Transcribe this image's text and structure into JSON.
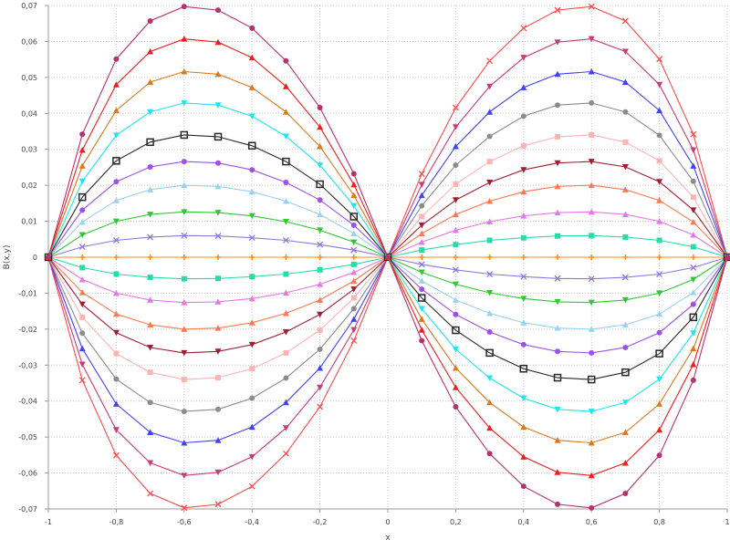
{
  "chart_data": {
    "type": "line",
    "xlabel": "x",
    "ylabel": "B(x,y)",
    "xlim": [
      -1,
      1
    ],
    "ylim": [
      -0.07,
      0.07
    ],
    "x_ticks": [
      {
        "value": -1,
        "label": "-1"
      },
      {
        "value": -0.8,
        "label": "-0,8"
      },
      {
        "value": -0.6,
        "label": "-0,6"
      },
      {
        "value": -0.4,
        "label": "-0,4"
      },
      {
        "value": -0.2,
        "label": "-0,2"
      },
      {
        "value": 0,
        "label": "0"
      },
      {
        "value": 0.2,
        "label": "0,2"
      },
      {
        "value": 0.4,
        "label": "0,4"
      },
      {
        "value": 0.6,
        "label": "0,6"
      },
      {
        "value": 0.8,
        "label": "0,8"
      },
      {
        "value": 1,
        "label": "1"
      }
    ],
    "y_ticks": [
      {
        "value": 0.07,
        "label": "0,07"
      },
      {
        "value": 0.06,
        "label": "0,06"
      },
      {
        "value": 0.05,
        "label": "0,05"
      },
      {
        "value": 0.04,
        "label": "0,04"
      },
      {
        "value": 0.03,
        "label": "0,03"
      },
      {
        "value": 0.02,
        "label": "0,02"
      },
      {
        "value": 0.01,
        "label": "0,01"
      },
      {
        "value": 0,
        "label": "0"
      },
      {
        "value": -0.01,
        "label": "-0,01"
      },
      {
        "value": -0.02,
        "label": "-0,02"
      },
      {
        "value": -0.03,
        "label": "-0,03"
      },
      {
        "value": -0.04,
        "label": "-0,04"
      },
      {
        "value": -0.05,
        "label": "-0,05"
      },
      {
        "value": -0.06,
        "label": "-0,06"
      },
      {
        "value": -0.07,
        "label": "-0,07"
      }
    ],
    "grid": true,
    "x": [
      -1,
      -0.9,
      -0.8,
      -0.7,
      -0.6,
      -0.5,
      -0.4,
      -0.3,
      -0.2,
      -0.1,
      0,
      0.1,
      0.2,
      0.3,
      0.4,
      0.5,
      0.6,
      0.7,
      0.8,
      0.9,
      1
    ],
    "series": [
      {
        "color": "#ff4a4a",
        "marker": "x",
        "values": [
          0,
          -0.0342,
          -0.0551,
          -0.0657,
          -0.0697,
          -0.0687,
          -0.0637,
          -0.0546,
          -0.0416,
          -0.0232,
          0,
          0.0232,
          0.0416,
          0.0546,
          0.0637,
          0.0687,
          0.0697,
          0.0657,
          0.0551,
          0.0342,
          0
        ]
      },
      {
        "color": "#c83c78",
        "marker": "v",
        "values": [
          0,
          -0.0298,
          -0.048,
          -0.0572,
          -0.0607,
          -0.0598,
          -0.0555,
          -0.0475,
          -0.0362,
          -0.0202,
          0,
          0.0202,
          0.0362,
          0.0475,
          0.0555,
          0.0598,
          0.0607,
          0.0572,
          0.048,
          0.0298,
          0
        ]
      },
      {
        "color": "#4040ff",
        "marker": "triangle",
        "values": [
          0,
          -0.0254,
          -0.0408,
          -0.0487,
          -0.0516,
          -0.0509,
          -0.0472,
          -0.0404,
          -0.0308,
          -0.0172,
          0,
          0.0172,
          0.0308,
          0.0404,
          0.0472,
          0.0509,
          0.0516,
          0.0487,
          0.0408,
          0.0254,
          0
        ]
      },
      {
        "color": "#8c8c8c",
        "marker": "circle",
        "values": [
          0,
          -0.0211,
          -0.0339,
          -0.0404,
          -0.0429,
          -0.0423,
          -0.0392,
          -0.0336,
          -0.0256,
          -0.0143,
          0,
          0.0143,
          0.0256,
          0.0336,
          0.0392,
          0.0423,
          0.0429,
          0.0404,
          0.0339,
          0.0211,
          0
        ]
      },
      {
        "color": "#ffb4b4",
        "marker": "square",
        "values": [
          0,
          -0.0167,
          -0.0268,
          -0.032,
          -0.034,
          -0.0335,
          -0.031,
          -0.0266,
          -0.0203,
          -0.0113,
          0,
          0.0113,
          0.0203,
          0.0266,
          0.031,
          0.0335,
          0.034,
          0.032,
          0.0268,
          0.0167,
          0
        ]
      },
      {
        "color": "#a01e32",
        "marker": "v",
        "values": [
          0,
          -0.0131,
          -0.021,
          -0.0251,
          -0.0266,
          -0.0262,
          -0.0243,
          -0.0208,
          -0.0159,
          -0.0089,
          0,
          0.0089,
          0.0159,
          0.0208,
          0.0243,
          0.0262,
          0.0266,
          0.0251,
          0.021,
          0.0131,
          0
        ]
      },
      {
        "color": "#ff7850",
        "marker": "triangle",
        "values": [
          0,
          -0.0098,
          -0.0158,
          -0.0188,
          -0.02,
          -0.0197,
          -0.0182,
          -0.0156,
          -0.0119,
          -0.0066,
          0,
          0.0066,
          0.0119,
          0.0156,
          0.0182,
          0.0197,
          0.02,
          0.0188,
          0.0158,
          0.0098,
          0
        ]
      },
      {
        "color": "#e678e6",
        "marker": "triangle",
        "values": [
          0,
          -0.0062,
          -0.01,
          -0.0119,
          -0.0126,
          -0.0124,
          -0.0115,
          -0.0099,
          -0.0075,
          -0.0042,
          0,
          0.0042,
          0.0075,
          0.0099,
          0.0115,
          0.0124,
          0.0126,
          0.0119,
          0.01,
          0.0062,
          0
        ]
      },
      {
        "color": "#28dcaa",
        "marker": "square",
        "values": [
          0,
          -0.0029,
          -0.0047,
          -0.0056,
          -0.006,
          -0.0059,
          -0.0054,
          -0.0047,
          -0.0035,
          -0.002,
          0,
          0.002,
          0.0035,
          0.0047,
          0.0054,
          0.0059,
          0.006,
          0.0056,
          0.0047,
          0.0029,
          0
        ]
      },
      {
        "color": "#ff8c1e",
        "marker": "cross",
        "values": [
          0,
          0,
          0,
          0,
          0,
          0,
          0,
          0,
          0,
          0,
          0,
          0,
          0,
          0,
          0,
          0,
          0,
          0,
          0,
          0,
          0
        ]
      },
      {
        "color": "#8c78dc",
        "marker": "x",
        "values": [
          0,
          0.0029,
          0.0047,
          0.0056,
          0.006,
          0.0059,
          0.0054,
          0.0047,
          0.0035,
          0.002,
          0,
          -0.002,
          -0.0035,
          -0.0047,
          -0.0054,
          -0.0059,
          -0.006,
          -0.0056,
          -0.0047,
          -0.0029,
          0
        ]
      },
      {
        "color": "#32c832",
        "marker": "v",
        "values": [
          0,
          0.0062,
          0.01,
          0.0119,
          0.0126,
          0.0124,
          0.0115,
          0.0099,
          0.0075,
          0.0042,
          0,
          -0.0042,
          -0.0075,
          -0.0099,
          -0.0115,
          -0.0124,
          -0.0126,
          -0.0119,
          -0.01,
          -0.0062,
          0
        ]
      },
      {
        "color": "#9ad2f0",
        "marker": "triangle",
        "values": [
          0,
          0.0098,
          0.0158,
          0.0188,
          0.02,
          0.0197,
          0.0182,
          0.0156,
          0.0119,
          0.0066,
          0,
          -0.0066,
          -0.0119,
          -0.0156,
          -0.0182,
          -0.0197,
          -0.02,
          -0.0188,
          -0.0158,
          -0.0098,
          0
        ]
      },
      {
        "color": "#a050e6",
        "marker": "circle",
        "values": [
          0,
          0.0131,
          0.021,
          0.0251,
          0.0266,
          0.0262,
          0.0243,
          0.0208,
          0.0159,
          0.0089,
          0,
          -0.0089,
          -0.0159,
          -0.0208,
          -0.0243,
          -0.0262,
          -0.0266,
          -0.0251,
          -0.021,
          -0.0131,
          0
        ]
      },
      {
        "color": "#282828",
        "marker": "square-open",
        "values": [
          0,
          0.0167,
          0.0268,
          0.032,
          0.034,
          0.0335,
          0.031,
          0.0266,
          0.0203,
          0.0113,
          0,
          -0.0113,
          -0.0203,
          -0.0266,
          -0.031,
          -0.0335,
          -0.034,
          -0.032,
          -0.0268,
          -0.0167,
          0
        ]
      },
      {
        "color": "#1ee6f0",
        "marker": "v",
        "values": [
          0,
          0.0211,
          0.0339,
          0.0404,
          0.0429,
          0.0423,
          0.0392,
          0.0336,
          0.0256,
          0.0143,
          0,
          -0.0143,
          -0.0256,
          -0.0336,
          -0.0392,
          -0.0423,
          -0.0429,
          -0.0404,
          -0.0339,
          -0.0211,
          0
        ]
      },
      {
        "color": "#dc781e",
        "marker": "triangle",
        "values": [
          0,
          0.0254,
          0.0408,
          0.0487,
          0.0516,
          0.0509,
          0.0472,
          0.0404,
          0.0308,
          0.0172,
          0,
          -0.0172,
          -0.0308,
          -0.0404,
          -0.0472,
          -0.0509,
          -0.0516,
          -0.0487,
          -0.0408,
          -0.0254,
          0
        ]
      },
      {
        "color": "#ee1e1e",
        "marker": "triangle",
        "values": [
          0,
          0.0298,
          0.048,
          0.0572,
          0.0607,
          0.0598,
          0.0555,
          0.0475,
          0.0362,
          0.0202,
          0,
          -0.0202,
          -0.0362,
          -0.0475,
          -0.0555,
          -0.0598,
          -0.0607,
          -0.0572,
          -0.048,
          -0.0298,
          0
        ]
      },
      {
        "color": "#b4326e",
        "marker": "circle",
        "values": [
          0,
          0.0342,
          0.0551,
          0.0657,
          0.0697,
          0.0687,
          0.0637,
          0.0546,
          0.0416,
          0.0232,
          0,
          -0.0232,
          -0.0416,
          -0.0546,
          -0.0637,
          -0.0687,
          -0.0697,
          -0.0657,
          -0.0551,
          -0.0342,
          0
        ]
      }
    ]
  }
}
